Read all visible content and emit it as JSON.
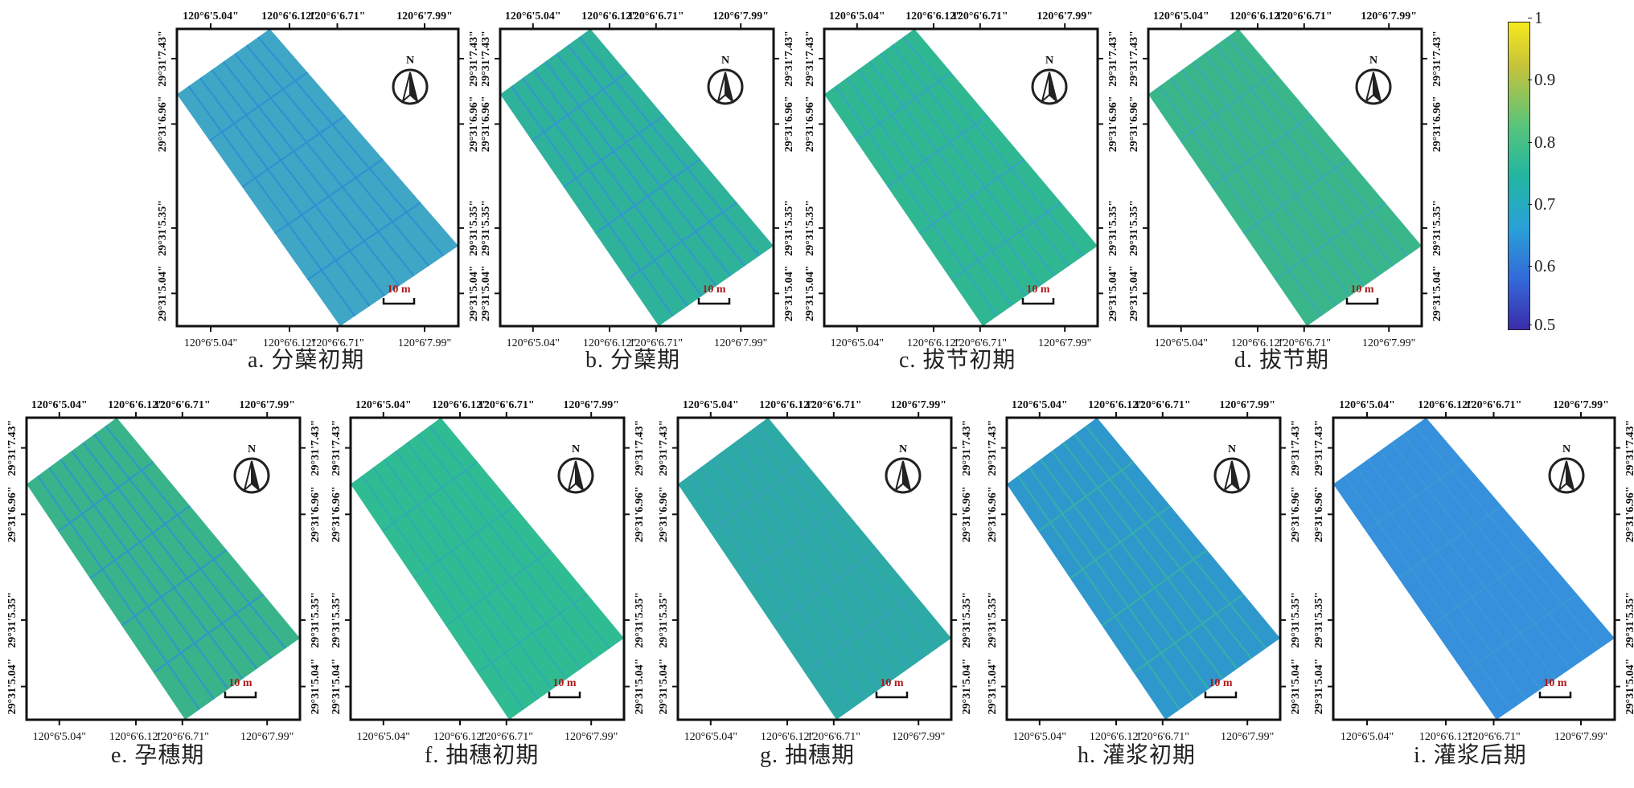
{
  "longitudes": [
    "120°6'5.04\"",
    "120°6'6.12\"",
    "120°6'6.71\"",
    "120°6'7.99\""
  ],
  "latitudes": [
    "29°31'7.43\"",
    "29°31'6.96\"",
    "29°31'5.35\"",
    "29°31'5.04\""
  ],
  "north_label": "N",
  "scale_label": "10 m",
  "icons": [
    "north-arrow-icon",
    "scale-bar-icon"
  ],
  "colorbar": {
    "ticks": [
      "1",
      "0.9",
      "0.8",
      "0.7",
      "0.6",
      "0.5"
    ],
    "min": 0.5,
    "max": 1.0,
    "colors": [
      "#f6e91b",
      "#c7c33a",
      "#57c47c",
      "#22b6a0",
      "#2aa0d8",
      "#3468d8",
      "#3b2caa"
    ]
  },
  "panels": [
    {
      "id": "a",
      "caption": "a. 分蘖初期",
      "fill": "#3fa6c6",
      "line": "#2c8fd4"
    },
    {
      "id": "b",
      "caption": "b. 分蘖期",
      "fill": "#2fb29a",
      "line": "#3394d6"
    },
    {
      "id": "c",
      "caption": "c. 拔节初期",
      "fill": "#2fb792",
      "line": "#36a3c8"
    },
    {
      "id": "d",
      "caption": "d. 拔节期",
      "fill": "#3ab78a",
      "line": "#37a8bd"
    },
    {
      "id": "e",
      "caption": "e. 孕穗期",
      "fill": "#39b38a",
      "line": "#2e94d2"
    },
    {
      "id": "f",
      "caption": "f. 抽穗初期",
      "fill": "#2fbc92",
      "line": "#32aab2"
    },
    {
      "id": "g",
      "caption": "g. 抽穗期",
      "fill": "#2eaaa6",
      "line": "#37a0bc"
    },
    {
      "id": "h",
      "caption": "h. 灌浆初期",
      "fill": "#2e98cd",
      "line": "#37b3a5"
    },
    {
      "id": "i",
      "caption": "i. 灌浆后期",
      "fill": "#3690dc",
      "line": "#3c9ad6"
    }
  ]
}
